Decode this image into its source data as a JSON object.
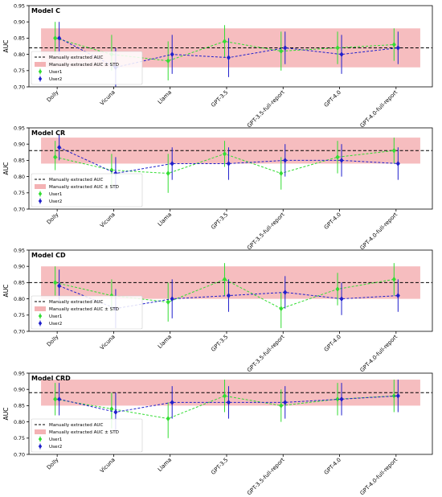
{
  "figure": {
    "categories": [
      "Dolly",
      "Vicuna",
      "Llama",
      "GPT-3.5",
      "GPT-3.5-full-report",
      "GPT-4.0",
      "GPT-4.0-full-report"
    ],
    "ylabel": "AUC",
    "ylim": [
      0.7,
      0.95
    ],
    "yticks": [
      "0.70",
      "0.75",
      "0.80",
      "0.85",
      "0.90",
      "0.95"
    ],
    "legend": {
      "position": "lower-left",
      "manual_label": "Manually extracted AUC",
      "band_label": "Manually extracted AUC ± STD",
      "user1_label": "User1",
      "user2_label": "User2"
    },
    "colors": {
      "user1": "#33dd33",
      "user2": "#1f1fcc",
      "band": "#f4b2b4",
      "manual_line": "#000000"
    }
  },
  "chart_data": [
    {
      "type": "line",
      "title": "Model C",
      "ylabel": "AUC",
      "ylim": [
        0.7,
        0.95
      ],
      "categories": [
        "Dolly",
        "Vicuna",
        "Llama",
        "GPT-3.5",
        "GPT-3.5-full-report",
        "GPT-4.0",
        "GPT-4.0-full-report"
      ],
      "manual_auc": 0.82,
      "manual_std_band": [
        0.76,
        0.88
      ],
      "series": [
        {
          "name": "User1",
          "values": [
            0.85,
            0.8,
            0.78,
            0.84,
            0.81,
            0.82,
            0.83
          ],
          "err_low": [
            0.8,
            0.75,
            0.72,
            0.79,
            0.75,
            0.77,
            0.78
          ],
          "err_high": [
            0.9,
            0.86,
            0.84,
            0.89,
            0.87,
            0.87,
            0.88
          ]
        },
        {
          "name": "User2",
          "values": [
            0.85,
            0.76,
            0.8,
            0.79,
            0.82,
            0.8,
            0.82
          ],
          "err_low": [
            0.8,
            0.7,
            0.74,
            0.73,
            0.77,
            0.74,
            0.77
          ],
          "err_high": [
            0.9,
            0.82,
            0.86,
            0.85,
            0.87,
            0.86,
            0.87
          ]
        }
      ]
    },
    {
      "type": "line",
      "title": "Model CR",
      "ylabel": "AUC",
      "ylim": [
        0.7,
        0.95
      ],
      "categories": [
        "Dolly",
        "Vicuna",
        "Llama",
        "GPT-3.5",
        "GPT-3.5-full-report",
        "GPT-4.0",
        "GPT-4.0-full-report"
      ],
      "manual_auc": 0.88,
      "manual_std_band": [
        0.84,
        0.92
      ],
      "series": [
        {
          "name": "User1",
          "values": [
            0.86,
            0.82,
            0.81,
            0.87,
            0.81,
            0.86,
            0.88
          ],
          "err_low": [
            0.82,
            0.77,
            0.75,
            0.83,
            0.76,
            0.81,
            0.84
          ],
          "err_high": [
            0.91,
            0.87,
            0.87,
            0.91,
            0.86,
            0.91,
            0.92
          ]
        },
        {
          "name": "User2",
          "values": [
            0.89,
            0.81,
            0.84,
            0.84,
            0.85,
            0.85,
            0.84
          ],
          "err_low": [
            0.85,
            0.76,
            0.79,
            0.79,
            0.8,
            0.8,
            0.79
          ],
          "err_high": [
            0.93,
            0.86,
            0.89,
            0.89,
            0.9,
            0.9,
            0.89
          ]
        }
      ]
    },
    {
      "type": "line",
      "title": "Model CD",
      "ylabel": "AUC",
      "ylim": [
        0.7,
        0.95
      ],
      "categories": [
        "Dolly",
        "Vicuna",
        "Llama",
        "GPT-3.5",
        "GPT-3.5-full-report",
        "GPT-4.0",
        "GPT-4.0-full-report"
      ],
      "manual_auc": 0.85,
      "manual_std_band": [
        0.8,
        0.9
      ],
      "series": [
        {
          "name": "User1",
          "values": [
            0.85,
            0.81,
            0.79,
            0.86,
            0.77,
            0.83,
            0.86
          ],
          "err_low": [
            0.81,
            0.76,
            0.73,
            0.81,
            0.71,
            0.78,
            0.81
          ],
          "err_high": [
            0.9,
            0.86,
            0.85,
            0.91,
            0.82,
            0.88,
            0.91
          ]
        },
        {
          "name": "User2",
          "values": [
            0.84,
            0.77,
            0.8,
            0.81,
            0.82,
            0.8,
            0.81
          ],
          "err_low": [
            0.79,
            0.71,
            0.74,
            0.76,
            0.77,
            0.75,
            0.76
          ],
          "err_high": [
            0.89,
            0.83,
            0.86,
            0.86,
            0.87,
            0.85,
            0.86
          ]
        }
      ]
    },
    {
      "type": "line",
      "title": "Model CRD",
      "ylabel": "AUC",
      "ylim": [
        0.7,
        0.95
      ],
      "categories": [
        "Dolly",
        "Vicuna",
        "Llama",
        "GPT-3.5",
        "GPT-3.5-full-report",
        "GPT-4.0",
        "GPT-4.0-full-report"
      ],
      "manual_auc": 0.89,
      "manual_std_band": [
        0.85,
        0.93
      ],
      "series": [
        {
          "name": "User1",
          "values": [
            0.87,
            0.84,
            0.81,
            0.88,
            0.85,
            0.87,
            0.88
          ],
          "err_low": [
            0.82,
            0.78,
            0.75,
            0.83,
            0.8,
            0.82,
            0.83
          ],
          "err_high": [
            0.92,
            0.89,
            0.86,
            0.93,
            0.9,
            0.92,
            0.93
          ]
        },
        {
          "name": "User2",
          "values": [
            0.87,
            0.83,
            0.86,
            0.86,
            0.86,
            0.87,
            0.88
          ],
          "err_low": [
            0.82,
            0.77,
            0.81,
            0.81,
            0.81,
            0.82,
            0.83
          ],
          "err_high": [
            0.92,
            0.89,
            0.91,
            0.91,
            0.91,
            0.92,
            0.93
          ]
        }
      ]
    }
  ]
}
